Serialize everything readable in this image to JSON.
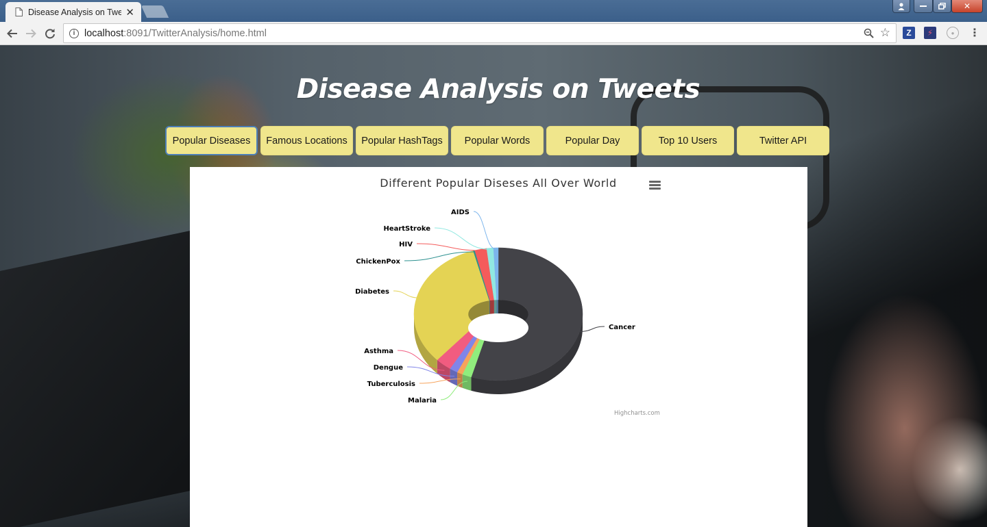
{
  "browser": {
    "tab_title": "Disease Analysis on Twee",
    "url_host": "localhost",
    "url_path": ":8091/TwitterAnalysis/home.html"
  },
  "page": {
    "title": "Disease Analysis on Tweets",
    "nav": [
      {
        "label": "Popular Diseases",
        "active": true
      },
      {
        "label": "Famous Locations",
        "active": false
      },
      {
        "label": "Popular HashTags",
        "active": false
      },
      {
        "label": "Popular Words",
        "active": false
      },
      {
        "label": "Popular Day",
        "active": false
      },
      {
        "label": "Top 10 Users",
        "active": false
      },
      {
        "label": "Twitter API",
        "active": false
      }
    ]
  },
  "chart_data": {
    "type": "pie",
    "variant": "3d-donut",
    "title": "Different Popular Diseses All Over World",
    "credits": "Highcharts.com",
    "slices": [
      {
        "name": "Cancer",
        "value": 55.2,
        "color": "#434348"
      },
      {
        "name": "Malaria",
        "value": 1.8,
        "color": "#90ed7d"
      },
      {
        "name": "Tuberculosis",
        "value": 1.1,
        "color": "#f7a35c"
      },
      {
        "name": "Dengue",
        "value": 1.6,
        "color": "#8085e9"
      },
      {
        "name": "Asthma",
        "value": 3.2,
        "color": "#f15c80"
      },
      {
        "name": "Diabetes",
        "value": 32.3,
        "color": "#e4d354"
      },
      {
        "name": "ChickenPox",
        "value": 0.3,
        "color": "#2b908f"
      },
      {
        "name": "HIV",
        "value": 2.3,
        "color": "#f45b5b"
      },
      {
        "name": "HeartStroke",
        "value": 1.3,
        "color": "#91e8e1"
      },
      {
        "name": "AIDS",
        "value": 0.9,
        "color": "#7cb5ec"
      }
    ]
  }
}
